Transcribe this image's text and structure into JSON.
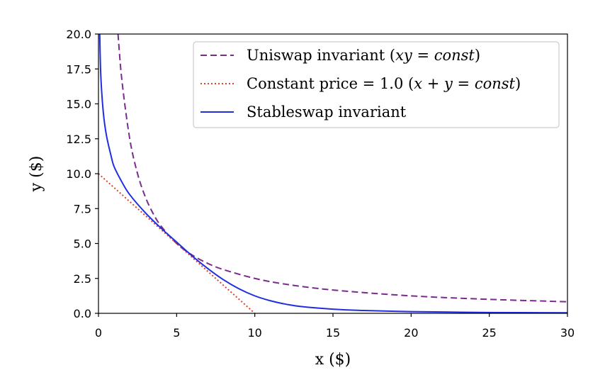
{
  "chart_data": {
    "type": "line",
    "xlabel": "x ($)",
    "ylabel": "y ($)",
    "xlim": [
      0,
      30
    ],
    "ylim": [
      0,
      20
    ],
    "xticks": [
      0,
      5,
      10,
      15,
      20,
      25,
      30
    ],
    "yticks": [
      0.0,
      2.5,
      5.0,
      7.5,
      10.0,
      12.5,
      15.0,
      17.5,
      20.0
    ],
    "ytick_labels": [
      "0.0",
      "2.5",
      "5.0",
      "7.5",
      "10.0",
      "12.5",
      "15.0",
      "17.5",
      "20.0"
    ],
    "xtick_labels": [
      "0",
      "5",
      "10",
      "15",
      "20",
      "25",
      "30"
    ],
    "grid": false,
    "legend_position": "top-right",
    "series": [
      {
        "name": "Uniswap invariant (xy = const)",
        "style": "dashed",
        "color": "#7b2b8c",
        "x": [
          1.25,
          1.5,
          2,
          2.5,
          3,
          3.5,
          4,
          5,
          6,
          7,
          8,
          10,
          12,
          15,
          20,
          25,
          30
        ],
        "y": [
          20,
          16.67,
          12.5,
          10,
          8.33,
          7.14,
          6.25,
          5,
          4.17,
          3.57,
          3.13,
          2.5,
          2.08,
          1.67,
          1.25,
          1.0,
          0.83
        ]
      },
      {
        "name": "Constant price = 1.0 (x + y = const)",
        "style": "dotted",
        "color": "#e0402a",
        "x": [
          0,
          10
        ],
        "y": [
          10,
          0
        ]
      },
      {
        "name": "Stableswap invariant",
        "style": "solid",
        "color": "#1f2fe0",
        "x": [
          0.08,
          0.15,
          0.3,
          0.5,
          0.8,
          1.0,
          1.5,
          2.0,
          3.0,
          4.0,
          5.0,
          6.0,
          7.0,
          8.0,
          9.0,
          10.0,
          11.0,
          12.0,
          13.0,
          15.0,
          17.0,
          20.0,
          25.0,
          30.0
        ],
        "y": [
          20,
          17.0,
          14.5,
          12.8,
          11.3,
          10.5,
          9.4,
          8.5,
          7.2,
          6.1,
          5.1,
          4.1,
          3.2,
          2.4,
          1.75,
          1.25,
          0.9,
          0.65,
          0.48,
          0.3,
          0.2,
          0.12,
          0.06,
          0.04
        ]
      }
    ],
    "legend": {
      "entries": [
        {
          "prefix": "Uniswap invariant (",
          "math": "xy = const",
          "suffix": ")"
        },
        {
          "prefix": "Constant price = 1.0 (",
          "math": "x + y = const",
          "suffix": ")"
        },
        {
          "prefix": "Stableswap invariant",
          "math": "",
          "suffix": ""
        }
      ]
    }
  }
}
